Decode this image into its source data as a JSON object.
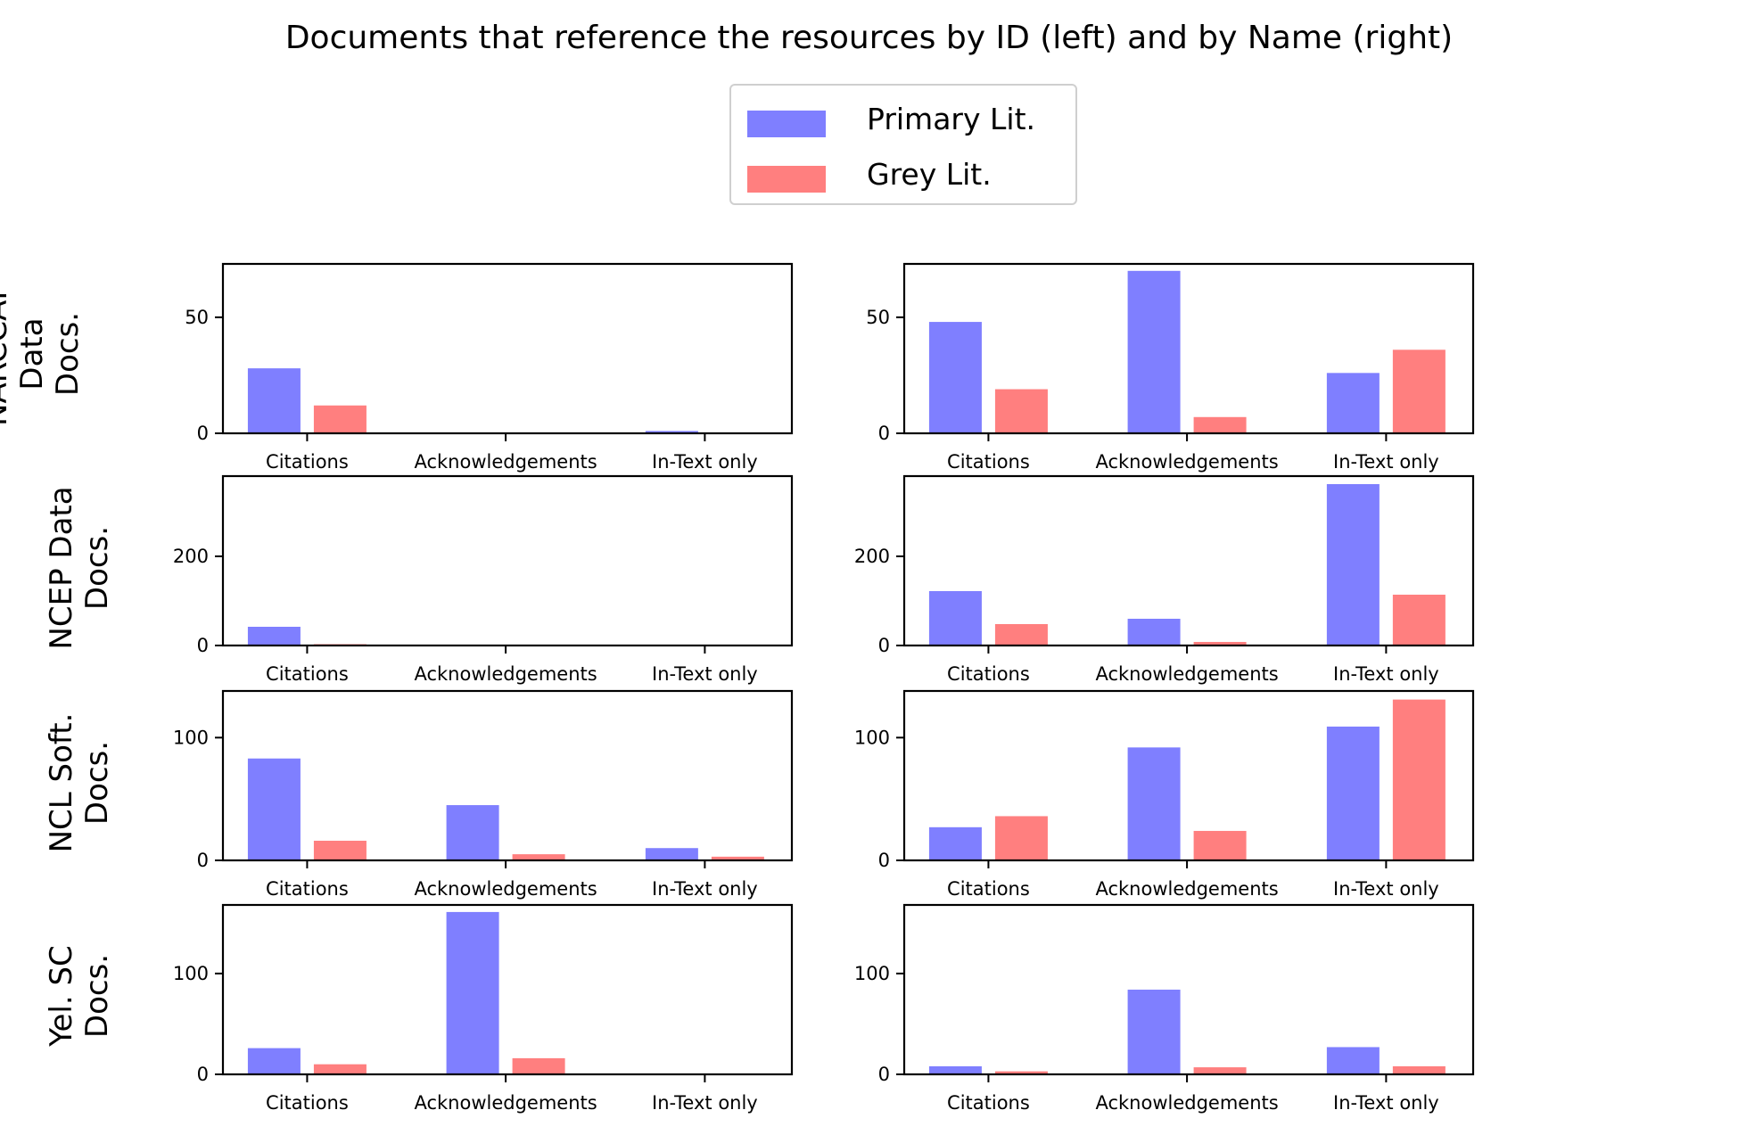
{
  "title": "Documents that reference the resources by ID (left) and by Name (right)",
  "legend": [
    {
      "label": "Primary Lit.",
      "color": "#0000ff"
    },
    {
      "label": "Grey Lit.",
      "color": "#ff0000"
    }
  ],
  "colors": {
    "primary": "#0000ff",
    "grey": "#ff0000",
    "bar_opacity": 0.5
  },
  "chart_data": [
    {
      "type": "bar",
      "row_label": "NARCCAP Data Docs.",
      "panel": "ID",
      "categories": [
        "Citations",
        "Acknowledgements",
        "In-Text only"
      ],
      "ylim": [
        0,
        73
      ],
      "yticks": [
        0,
        50
      ],
      "series": [
        {
          "name": "Primary Lit.",
          "values": [
            28,
            0,
            1
          ]
        },
        {
          "name": "Grey Lit.",
          "values": [
            12,
            0,
            0
          ]
        }
      ]
    },
    {
      "type": "bar",
      "row_label": "NARCCAP Data Docs.",
      "panel": "Name",
      "categories": [
        "Citations",
        "Acknowledgements",
        "In-Text only"
      ],
      "ylim": [
        0,
        73
      ],
      "yticks": [
        0,
        50
      ],
      "series": [
        {
          "name": "Primary Lit.",
          "values": [
            48,
            70,
            26
          ]
        },
        {
          "name": "Grey Lit.",
          "values": [
            19,
            7,
            36
          ]
        }
      ]
    },
    {
      "type": "bar",
      "row_label": "NCEP Data Docs.",
      "panel": "ID",
      "categories": [
        "Citations",
        "Acknowledgements",
        "In-Text only"
      ],
      "ylim": [
        0,
        380
      ],
      "yticks": [
        0,
        200
      ],
      "series": [
        {
          "name": "Primary Lit.",
          "values": [
            42,
            0,
            0
          ]
        },
        {
          "name": "Grey Lit.",
          "values": [
            3,
            0,
            0
          ]
        }
      ]
    },
    {
      "type": "bar",
      "row_label": "NCEP Data Docs.",
      "panel": "Name",
      "categories": [
        "Citations",
        "Acknowledgements",
        "In-Text only"
      ],
      "ylim": [
        0,
        380
      ],
      "yticks": [
        0,
        200
      ],
      "series": [
        {
          "name": "Primary Lit.",
          "values": [
            122,
            60,
            362
          ]
        },
        {
          "name": "Grey Lit.",
          "values": [
            48,
            8,
            114
          ]
        }
      ]
    },
    {
      "type": "bar",
      "row_label": "NCL Soft. Docs.",
      "panel": "ID",
      "categories": [
        "Citations",
        "Acknowledgements",
        "In-Text only"
      ],
      "ylim": [
        0,
        138
      ],
      "yticks": [
        0,
        100
      ],
      "series": [
        {
          "name": "Primary Lit.",
          "values": [
            83,
            45,
            10
          ]
        },
        {
          "name": "Grey Lit.",
          "values": [
            16,
            5,
            3
          ]
        }
      ]
    },
    {
      "type": "bar",
      "row_label": "NCL Soft. Docs.",
      "panel": "Name",
      "categories": [
        "Citations",
        "Acknowledgements",
        "In-Text only"
      ],
      "ylim": [
        0,
        138
      ],
      "yticks": [
        0,
        100
      ],
      "series": [
        {
          "name": "Primary Lit.",
          "values": [
            27,
            92,
            109
          ]
        },
        {
          "name": "Grey Lit.",
          "values": [
            36,
            24,
            131
          ]
        }
      ]
    },
    {
      "type": "bar",
      "row_label": "Yel. SC Docs.",
      "panel": "ID",
      "categories": [
        "Citations",
        "Acknowledgements",
        "In-Text only"
      ],
      "ylim": [
        0,
        168
      ],
      "yticks": [
        0,
        100
      ],
      "series": [
        {
          "name": "Primary Lit.",
          "values": [
            26,
            161,
            0
          ]
        },
        {
          "name": "Grey Lit.",
          "values": [
            10,
            16,
            0
          ]
        }
      ]
    },
    {
      "type": "bar",
      "row_label": "Yel. SC Docs.",
      "panel": "Name",
      "categories": [
        "Citations",
        "Acknowledgements",
        "In-Text only"
      ],
      "ylim": [
        0,
        168
      ],
      "yticks": [
        0,
        100
      ],
      "series": [
        {
          "name": "Primary Lit.",
          "values": [
            8,
            84,
            27
          ]
        },
        {
          "name": "Grey Lit.",
          "values": [
            3,
            7,
            8
          ]
        }
      ]
    }
  ]
}
